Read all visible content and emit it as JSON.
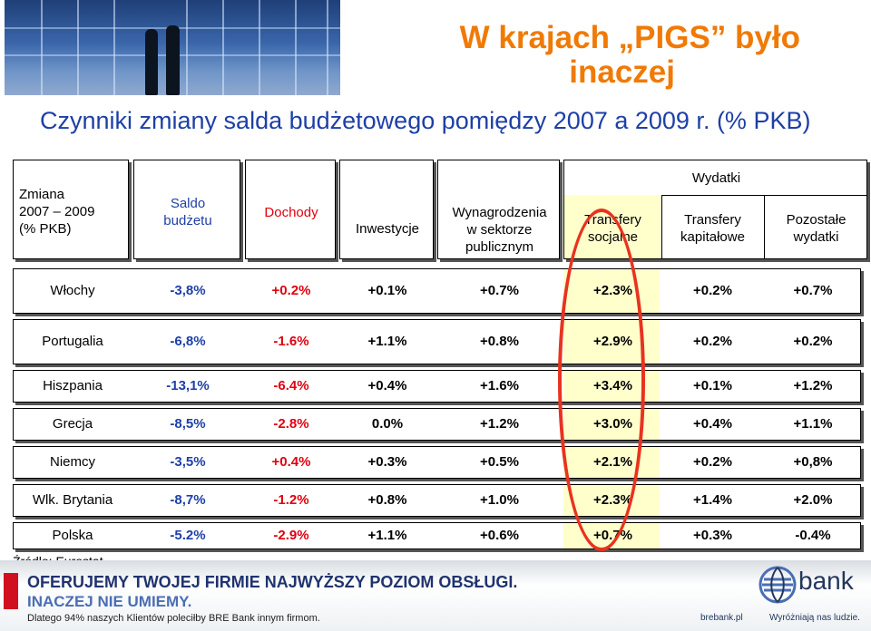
{
  "title": {
    "line1": "W krajach „PIGS” było",
    "line2": "inaczej"
  },
  "subtitle": "Czynniki zmiany salda budżetowego pomiędzy 2007 a 2009 r. (% PKB)",
  "table": {
    "headers": {
      "zmiana": [
        "Zmiana",
        "2007 – 2009",
        "(% PKB)"
      ],
      "saldo": [
        "Saldo",
        "budżetu"
      ],
      "dochody": "Dochody",
      "inwestycje": "Inwestycje",
      "wynagrodzenia": [
        "Wynagrodzenia",
        "w sektorze",
        "publicznym"
      ],
      "wydatki": "Wydatki",
      "transfery_socjalne": [
        "Transfery",
        "socjalne"
      ],
      "transfery_kapitalowe": [
        "Transfery",
        "kapitałowe"
      ],
      "pozostale": [
        "Pozostałe",
        "wydatki"
      ]
    },
    "rows": [
      {
        "country": "Włochy",
        "saldo": "-3,8%",
        "dochody": "+0.2%",
        "inwestycje": "+0.1%",
        "wynagrodzenia": "+0.7%",
        "socjalne": "+2.3%",
        "kapitalowe": "+0.2%",
        "pozostale": "+0.7%"
      },
      {
        "country": "Portugalia",
        "saldo": "-6,8%",
        "dochody": "-1.6%",
        "inwestycje": "+1.1%",
        "wynagrodzenia": "+0.8%",
        "socjalne": "+2.9%",
        "kapitalowe": "+0.2%",
        "pozostale": "+0.2%"
      },
      {
        "country": "Hiszpania",
        "saldo": "-13,1%",
        "dochody": "-6.4%",
        "inwestycje": "+0.4%",
        "wynagrodzenia": "+1.6%",
        "socjalne": "+3.4%",
        "kapitalowe": "+0.1%",
        "pozostale": "+1.2%"
      },
      {
        "country": "Grecja",
        "saldo": "-8,5%",
        "dochody": "-2.8%",
        "inwestycje": "0.0%",
        "wynagrodzenia": "+1.2%",
        "socjalne": "+3.0%",
        "kapitalowe": "+0.4%",
        "pozostale": "+1.1%"
      },
      {
        "country": "Niemcy",
        "saldo": "-3,5%",
        "dochody": "+0.4%",
        "inwestycje": "+0.3%",
        "wynagrodzenia": "+0.5%",
        "socjalne": "+2.1%",
        "kapitalowe": "+0.2%",
        "pozostale": "+0,8%"
      },
      {
        "country": "Wlk. Brytania",
        "saldo": "-8,7%",
        "dochody": "-1.2%",
        "inwestycje": "+0.8%",
        "wynagrodzenia": "+1.0%",
        "socjalne": "+2.3%",
        "kapitalowe": "+1.4%",
        "pozostale": "+2.0%"
      },
      {
        "country": "Polska",
        "saldo": "-5.2%",
        "dochody": "-2.9%",
        "inwestycje": "+1.1%",
        "wynagrodzenia": "+0.6%",
        "socjalne": "+0.7%",
        "kapitalowe": "+0.3%",
        "pozostale": "-0.4%"
      }
    ]
  },
  "source": "Źródło: Eurostat.",
  "banner": {
    "line1": "OFERUJEMY TWOJEJ FIRMIE NAJWYŻSZY POZIOM OBSŁUGI.",
    "line2": "INACZEJ NIE UMIEMY.",
    "line3": "Dlatego 94% naszych Klientów poleciłby BRE Bank innym firmom.",
    "brand": "bank",
    "url": "brebank.pl",
    "slogan": "Wyróżniają nas ludzie."
  },
  "colors": {
    "title": "#f07a06",
    "subtitle": "#1e3fa6",
    "negative_highlight": "#e0000e",
    "oval": "#e8331f",
    "social_column": "#ffffcc"
  }
}
